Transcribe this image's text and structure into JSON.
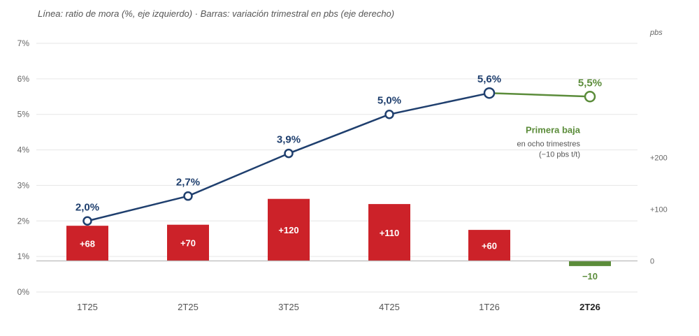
{
  "subtitle": "Línea: ratio de mora (%, eje izquierdo) · Barras: variación trimestral en pbs (eje derecho)",
  "colors": {
    "line": "#1f3f6e",
    "line_highlight": "#5b8c3a",
    "bar_positive": "#cc2229",
    "bar_negative": "#5b8c3a",
    "grid": "#e6e6e6",
    "zero_line": "#bbbbbb"
  },
  "chart_data": {
    "type": "bar",
    "categories": [
      "1T25",
      "2T25",
      "3T25",
      "4T25",
      "1T26",
      "2T26"
    ],
    "highlight_category": "2T26",
    "series": [
      {
        "type": "line",
        "axis": "left",
        "values": [
          2.0,
          2.7,
          3.9,
          5.0,
          5.6,
          5.5
        ],
        "labels": [
          "2,0%",
          "2,7%",
          "3,9%",
          "5,0%",
          "5,6%",
          "5,5%"
        ]
      },
      {
        "type": "bar",
        "axis": "right",
        "values": [
          68,
          70,
          120,
          110,
          60,
          -10
        ],
        "labels": [
          "+68",
          "+70",
          "+120",
          "+110",
          "+60",
          "−10"
        ]
      }
    ],
    "y_left": {
      "range": [
        0,
        7
      ],
      "ticks": [
        0,
        1,
        2,
        3,
        4,
        5,
        6,
        7
      ],
      "tick_labels": [
        "0%",
        "1%",
        "2%",
        "3%",
        "4%",
        "5%",
        "6%",
        "7%"
      ]
    },
    "y_right": {
      "unit": "pbs",
      "ticks": [
        0,
        100,
        200
      ],
      "tick_labels": [
        "0",
        "+100",
        "+200"
      ]
    },
    "grid": true,
    "annotation": {
      "title": "Primera baja",
      "lines": [
        "en ocho trimestres",
        "(−10 pbs t/t)"
      ]
    }
  }
}
